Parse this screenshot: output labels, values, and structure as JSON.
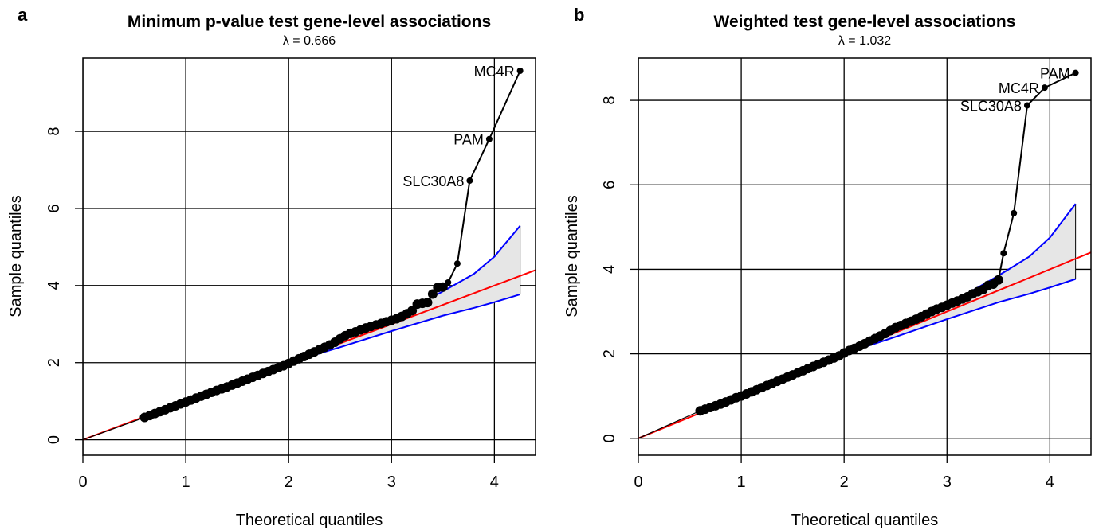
{
  "chart_data": [
    {
      "type": "scatter",
      "panel_label": "a",
      "title": "Minimum p-value test gene-level associations",
      "subtitle": "λ = 0.666",
      "xlabel": "Theoretical quantiles",
      "ylabel": "Sample quantiles",
      "xlim": [
        0,
        4.4
      ],
      "ylim": [
        -0.4,
        9.9
      ],
      "xticks": [
        0,
        1,
        2,
        3,
        4
      ],
      "yticks": [
        0,
        2,
        4,
        6,
        8
      ],
      "grid": true,
      "reference_line": {
        "label": "",
        "color": "#ff0000",
        "x": [
          0,
          4.4
        ],
        "y": [
          0,
          4.4
        ]
      },
      "confidence_band": {
        "color": "#0000ff",
        "fill": "#e6e6e6",
        "x": [
          2.0,
          2.5,
          3.0,
          3.5,
          3.8,
          4.0,
          4.25
        ],
        "upper": [
          2.0,
          2.55,
          3.15,
          3.85,
          4.3,
          4.75,
          5.55
        ],
        "lower": [
          2.0,
          2.4,
          2.82,
          3.22,
          3.42,
          3.57,
          3.77
        ]
      },
      "points": {
        "color": "#000000",
        "x": [
          0.6,
          0.65,
          0.7,
          0.75,
          0.8,
          0.85,
          0.9,
          0.95,
          1.0,
          1.05,
          1.1,
          1.15,
          1.2,
          1.25,
          1.3,
          1.35,
          1.4,
          1.45,
          1.5,
          1.55,
          1.6,
          1.65,
          1.7,
          1.75,
          1.8,
          1.85,
          1.9,
          1.95,
          2.0,
          2.05,
          2.1,
          2.15,
          2.2,
          2.25,
          2.3,
          2.35,
          2.4,
          2.45,
          2.5,
          2.55,
          2.6,
          2.65,
          2.7,
          2.75,
          2.8,
          2.85,
          2.9,
          2.95,
          3.0,
          3.05,
          3.1,
          3.15,
          3.2,
          3.25,
          3.3,
          3.35,
          3.4,
          3.45,
          3.5,
          3.55,
          3.64,
          3.76,
          3.95,
          4.25
        ],
        "y": [
          0.58,
          0.63,
          0.68,
          0.73,
          0.78,
          0.83,
          0.88,
          0.93,
          0.98,
          1.03,
          1.08,
          1.13,
          1.18,
          1.23,
          1.28,
          1.32,
          1.37,
          1.42,
          1.47,
          1.52,
          1.57,
          1.62,
          1.67,
          1.72,
          1.77,
          1.82,
          1.87,
          1.92,
          1.98,
          2.04,
          2.1,
          2.16,
          2.22,
          2.28,
          2.34,
          2.4,
          2.46,
          2.53,
          2.62,
          2.7,
          2.76,
          2.8,
          2.85,
          2.9,
          2.94,
          2.98,
          3.02,
          3.06,
          3.1,
          3.14,
          3.2,
          3.27,
          3.35,
          3.52,
          3.54,
          3.56,
          3.78,
          3.95,
          3.96,
          4.08,
          4.57,
          6.72,
          7.8,
          9.57
        ]
      },
      "labeled_points": [
        {
          "label": "MC4R",
          "x": 4.25,
          "y": 9.57
        },
        {
          "label": "PAM",
          "x": 3.95,
          "y": 7.8
        },
        {
          "label": "SLC30A8",
          "x": 3.76,
          "y": 6.72
        }
      ]
    },
    {
      "type": "scatter",
      "panel_label": "b",
      "title": "Weighted test gene-level associations",
      "subtitle": "λ = 1.032",
      "xlabel": "Theoretical quantiles",
      "ylabel": "Sample quantiles",
      "xlim": [
        0,
        4.4
      ],
      "ylim": [
        -0.4,
        9.0
      ],
      "xticks": [
        0,
        1,
        2,
        3,
        4
      ],
      "yticks": [
        0,
        2,
        4,
        6,
        8
      ],
      "grid": true,
      "reference_line": {
        "label": "",
        "color": "#ff0000",
        "x": [
          0,
          4.4
        ],
        "y": [
          0,
          4.4
        ]
      },
      "confidence_band": {
        "color": "#0000ff",
        "fill": "#e6e6e6",
        "x": [
          2.0,
          2.5,
          3.0,
          3.5,
          3.8,
          4.0,
          4.25
        ],
        "upper": [
          2.0,
          2.55,
          3.15,
          3.85,
          4.3,
          4.75,
          5.55
        ],
        "lower": [
          2.0,
          2.4,
          2.82,
          3.22,
          3.42,
          3.57,
          3.77
        ]
      },
      "points": {
        "color": "#000000",
        "x": [
          0.6,
          0.65,
          0.7,
          0.75,
          0.8,
          0.85,
          0.9,
          0.95,
          1.0,
          1.05,
          1.1,
          1.15,
          1.2,
          1.25,
          1.3,
          1.35,
          1.4,
          1.45,
          1.5,
          1.55,
          1.6,
          1.65,
          1.7,
          1.75,
          1.8,
          1.85,
          1.9,
          1.95,
          2.0,
          2.05,
          2.1,
          2.15,
          2.2,
          2.25,
          2.3,
          2.35,
          2.4,
          2.45,
          2.5,
          2.55,
          2.6,
          2.65,
          2.7,
          2.75,
          2.8,
          2.85,
          2.9,
          2.95,
          3.0,
          3.05,
          3.1,
          3.15,
          3.2,
          3.25,
          3.3,
          3.35,
          3.4,
          3.45,
          3.5,
          3.55,
          3.65,
          3.78,
          3.95,
          4.25
        ],
        "y": [
          0.65,
          0.69,
          0.73,
          0.77,
          0.81,
          0.86,
          0.91,
          0.96,
          1.0,
          1.05,
          1.1,
          1.15,
          1.2,
          1.25,
          1.3,
          1.35,
          1.4,
          1.45,
          1.5,
          1.55,
          1.6,
          1.65,
          1.7,
          1.75,
          1.8,
          1.85,
          1.9,
          1.95,
          2.02,
          2.08,
          2.13,
          2.18,
          2.24,
          2.3,
          2.36,
          2.42,
          2.48,
          2.55,
          2.62,
          2.67,
          2.72,
          2.77,
          2.82,
          2.88,
          2.94,
          3.0,
          3.06,
          3.1,
          3.15,
          3.2,
          3.25,
          3.3,
          3.35,
          3.42,
          3.47,
          3.52,
          3.62,
          3.65,
          3.75,
          4.38,
          5.33,
          7.88,
          8.3,
          8.65
        ]
      },
      "labeled_points": [
        {
          "label": "PAM",
          "x": 4.25,
          "y": 8.65
        },
        {
          "label": "MC4R",
          "x": 3.95,
          "y": 8.3
        },
        {
          "label": "SLC30A8",
          "x": 3.78,
          "y": 7.88
        }
      ]
    }
  ]
}
